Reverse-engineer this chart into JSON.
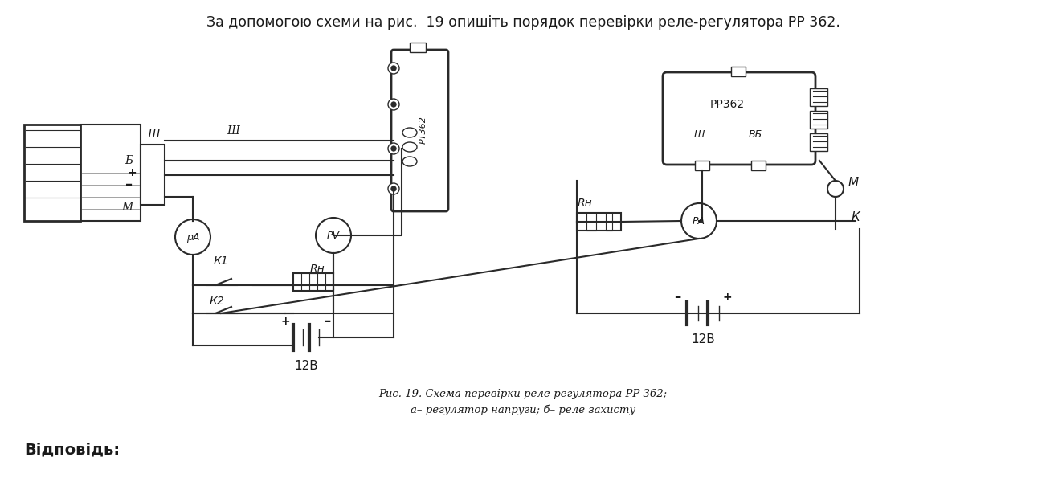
{
  "title_text": "За допомогою схеми на рис.  19 опишіть порядок перевірки реле-регулятора РР 362.",
  "caption_line1": "Рис. 19. Схема перевірки реле-регулятора РР 362;",
  "caption_line2": "а– регулятор напруги; б– реле захисту",
  "bottom_text": "Відповідь:",
  "bg_color": "#ffffff",
  "text_color": "#1a1a1a",
  "diagram_color": "#2a2a2a",
  "lw": 1.5
}
